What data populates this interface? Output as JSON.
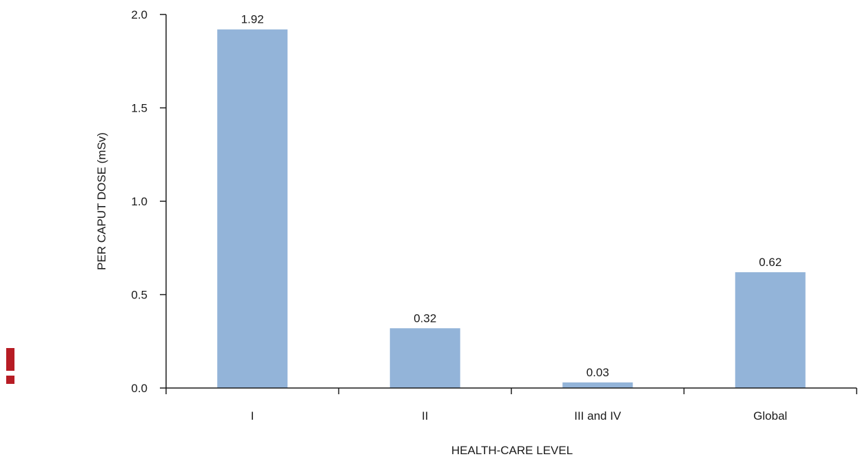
{
  "chart_data": {
    "type": "bar",
    "categories": [
      "I",
      "II",
      "III and IV",
      "Global"
    ],
    "values": [
      1.92,
      0.32,
      0.03,
      0.62
    ],
    "data_labels": [
      "1.92",
      "0.32",
      "0.03",
      "0.62"
    ],
    "yticks": [
      0.0,
      0.5,
      1.0,
      1.5,
      2.0
    ],
    "ytick_labels": [
      "0.0",
      "0.5",
      "1.0",
      "1.5",
      "2.0"
    ],
    "ylim": [
      0,
      2.0
    ],
    "xlabel": "HEALTH-CARE LEVEL",
    "ylabel": "PER CAPUT DOSE (mSv)",
    "bar_color": "#93b4d9",
    "grid": false
  },
  "warning_icon": {
    "icon": "exclamation-icon",
    "color": "#b71c24"
  }
}
